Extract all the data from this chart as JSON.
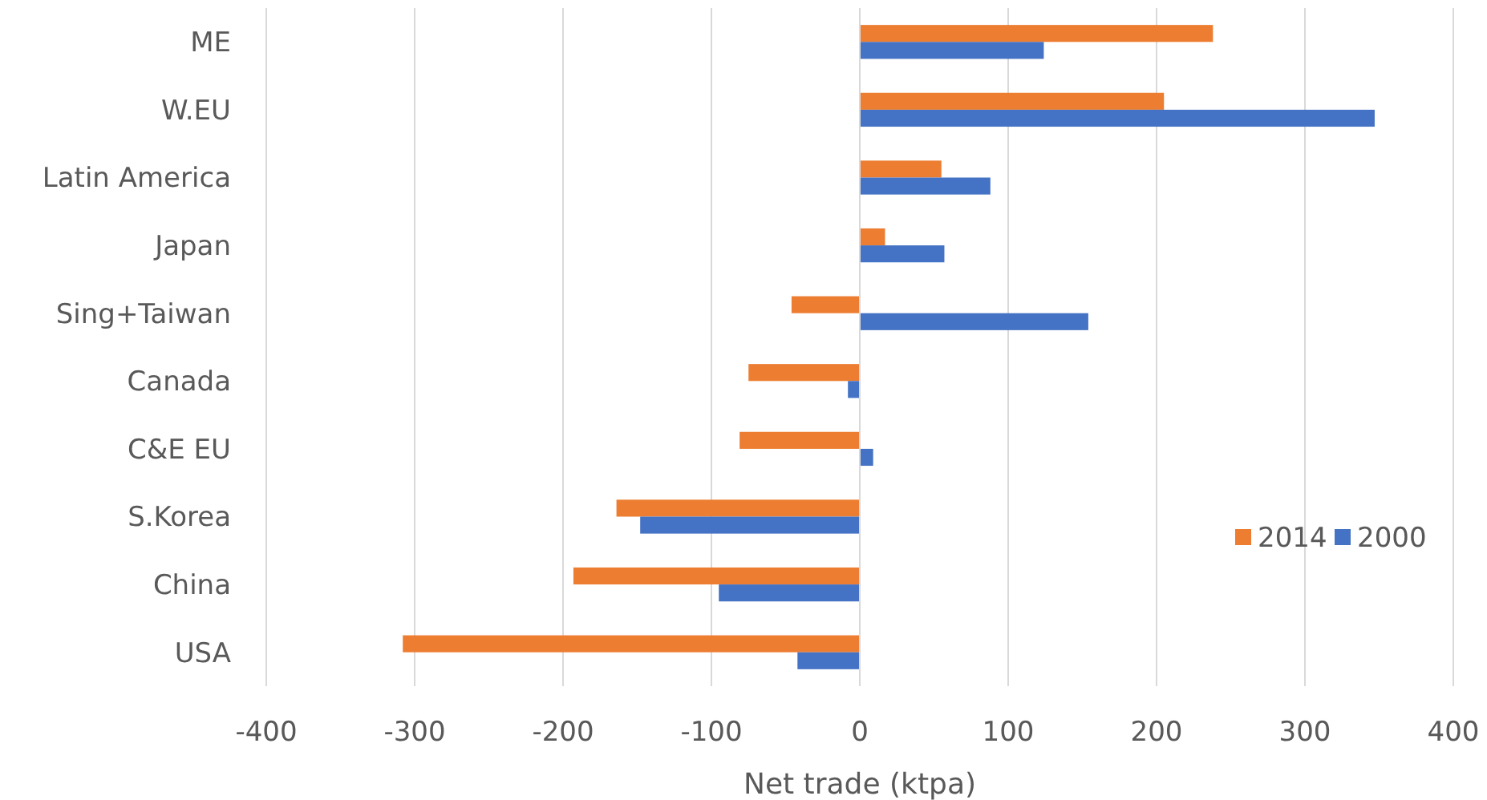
{
  "chart_data": {
    "type": "bar",
    "orientation": "horizontal",
    "xlabel": "Net trade (ktpa)",
    "categories": [
      "ME",
      "W.EU",
      "Latin America",
      "Japan",
      "Sing+Taiwan",
      "Canada",
      "C&E EU",
      "S.Korea",
      "China",
      "USA"
    ],
    "series": [
      {
        "name": "2014",
        "color": "#ed7d31",
        "values": [
          238,
          205,
          55,
          17,
          -46,
          -75,
          -81,
          -164,
          -193,
          -308
        ]
      },
      {
        "name": "2000",
        "color": "#4472c4",
        "values": [
          124,
          347,
          88,
          57,
          154,
          -8,
          9,
          -148,
          -95,
          -42
        ]
      }
    ],
    "xlim": [
      -400,
      400
    ],
    "xticks": [
      -400,
      -300,
      -200,
      -100,
      0,
      100,
      200,
      300,
      400
    ],
    "grid": "x",
    "legend": "right"
  }
}
